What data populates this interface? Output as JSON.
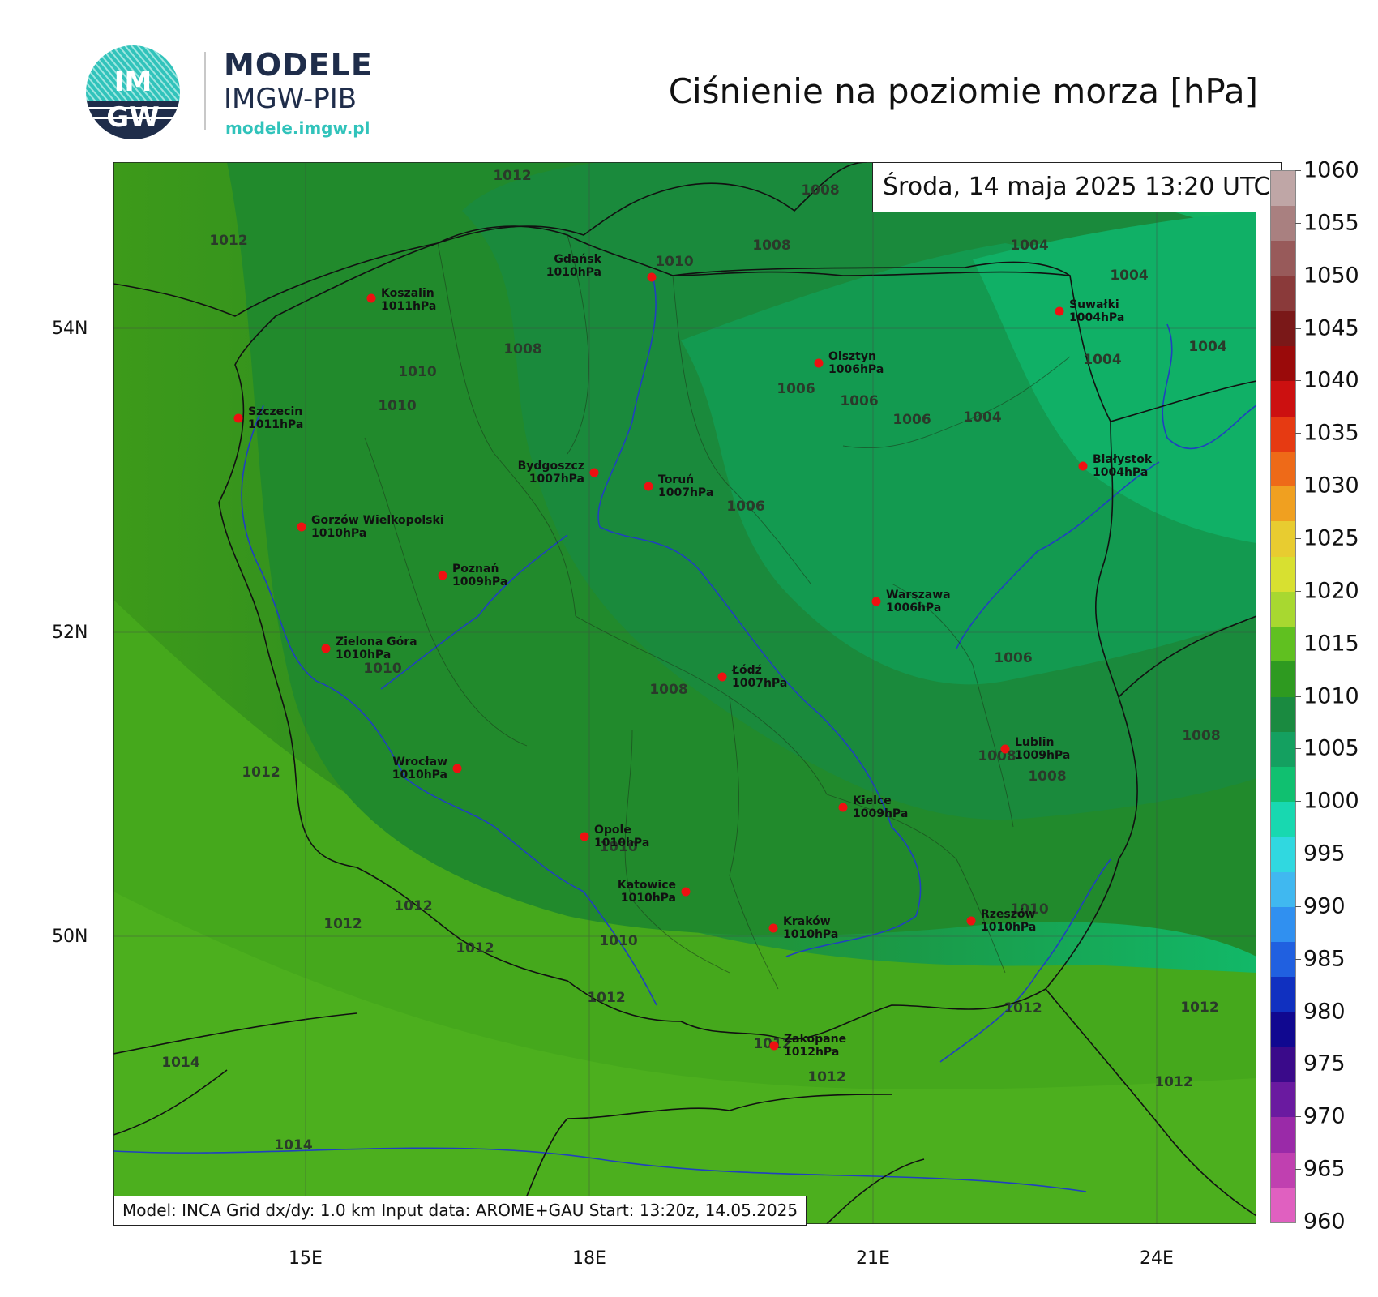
{
  "header": {
    "brand_line1": "MODELE",
    "brand_line2": "IMGW-PIB",
    "brand_url": "modele.imgw.pl",
    "logo_text_top": "IM",
    "logo_text_bottom": "GW",
    "title": "Ciśnienie na poziomie morza [hPa]"
  },
  "timestamp": "Środa, 14 maja 2025 13:20 UTC",
  "footer": "Model: INCA   Grid dx/dy: 1.0 km   Input data: AROME+GAU   Start: 13:20z, 14.05.2025",
  "axes": {
    "lat_labels": [
      "54N",
      "52N",
      "50N"
    ],
    "lon_labels": [
      "15E",
      "18E",
      "21E",
      "24E"
    ]
  },
  "colorbar": {
    "labels": [
      "1060",
      "1055",
      "1050",
      "1045",
      "1040",
      "1035",
      "1030",
      "1025",
      "1020",
      "1015",
      "1010",
      "1005",
      "1000",
      "995",
      "990",
      "985",
      "980",
      "975",
      "970",
      "965",
      "960"
    ],
    "colors_top_to_bottom": [
      "#bfa6a6",
      "#a98080",
      "#985a5a",
      "#8a3a3a",
      "#7a1818",
      "#9a0a0a",
      "#cc1010",
      "#e63a12",
      "#ee6a18",
      "#f0a020",
      "#e8cc30",
      "#d8e030",
      "#a8d830",
      "#60c020",
      "#2e9a20",
      "#1a8a40",
      "#14a060",
      "#10c070",
      "#18d8b0",
      "#30d8e0",
      "#40b8f0",
      "#3090f0",
      "#2060e0",
      "#1030c0",
      "#100890",
      "#3a0a8a",
      "#6a1aa0",
      "#9a2aa8",
      "#c040b0",
      "#e060c0"
    ]
  },
  "cities": [
    {
      "name": "Gdańsk",
      "value": "1010hPa"
    },
    {
      "name": "Koszalin",
      "value": "1011hPa"
    },
    {
      "name": "Suwałki",
      "value": "1004hPa"
    },
    {
      "name": "Szczecin",
      "value": "1011hPa"
    },
    {
      "name": "Olsztyn",
      "value": "1006hPa"
    },
    {
      "name": "Bydgoszcz",
      "value": "1007hPa"
    },
    {
      "name": "Toruń",
      "value": "1007hPa"
    },
    {
      "name": "Białystok",
      "value": "1004hPa"
    },
    {
      "name": "Gorzów Wielkopolski",
      "value": "1010hPa"
    },
    {
      "name": "Poznań",
      "value": "1009hPa"
    },
    {
      "name": "Warszawa",
      "value": "1006hPa"
    },
    {
      "name": "Zielona Góra",
      "value": "1010hPa"
    },
    {
      "name": "Łódź",
      "value": "1007hPa"
    },
    {
      "name": "Lublin",
      "value": "1009hPa"
    },
    {
      "name": "Wrocław",
      "value": "1010hPa"
    },
    {
      "name": "Kielce",
      "value": "1009hPa"
    },
    {
      "name": "Opole",
      "value": "1010hPa"
    },
    {
      "name": "Katowice",
      "value": "1010hPa"
    },
    {
      "name": "Kraków",
      "value": "1010hPa"
    },
    {
      "name": "Rzeszów",
      "value": "1010hPa"
    },
    {
      "name": "Zakopane",
      "value": "1012hPa"
    }
  ],
  "contour_labels": [
    "1012",
    "1008",
    "1012",
    "1010",
    "1008",
    "1004",
    "1004",
    "1008",
    "1010",
    "1010",
    "1006",
    "1006",
    "1006",
    "1004",
    "1004",
    "1004",
    "1006",
    "1006",
    "1008",
    "1010",
    "1012",
    "1008",
    "1008",
    "1008",
    "1010",
    "1012",
    "1012",
    "1012",
    "1010",
    "1012",
    "1012",
    "1012",
    "1014",
    "1012",
    "1012",
    "1014",
    "1012",
    "1010"
  ]
}
